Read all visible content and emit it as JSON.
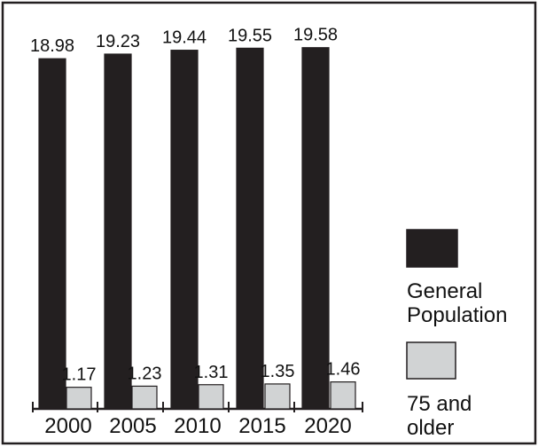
{
  "chart_data": {
    "type": "bar",
    "categories": [
      "2000",
      "2005",
      "2010",
      "2015",
      "2020"
    ],
    "series": [
      {
        "name": "General Population",
        "values": [
          18.98,
          19.23,
          19.44,
          19.55,
          19.58
        ],
        "color": "#231f20"
      },
      {
        "name": "75 and older",
        "values": [
          1.17,
          1.23,
          1.31,
          1.35,
          1.46
        ],
        "color": "#d1d3d4"
      }
    ],
    "data_labels": [
      [
        "18.98",
        "19.23",
        "19.44",
        "19.55",
        "19.58"
      ],
      [
        "1.17",
        "1.23",
        "1.31",
        "1.35",
        "1.46"
      ]
    ],
    "legend": {
      "placement": "right",
      "items": [
        {
          "lines": [
            "General",
            "Population"
          ],
          "color": "#231f20"
        },
        {
          "lines": [
            "75 and",
            "older"
          ],
          "color": "#d1d3d4"
        }
      ]
    },
    "title": "",
    "xlabel": "",
    "ylabel": "",
    "ylim": [
      0,
      20
    ],
    "grid": false,
    "colors": {
      "frame": "#231f20",
      "bar_outline": "#231f20",
      "background": "#ffffff"
    }
  }
}
